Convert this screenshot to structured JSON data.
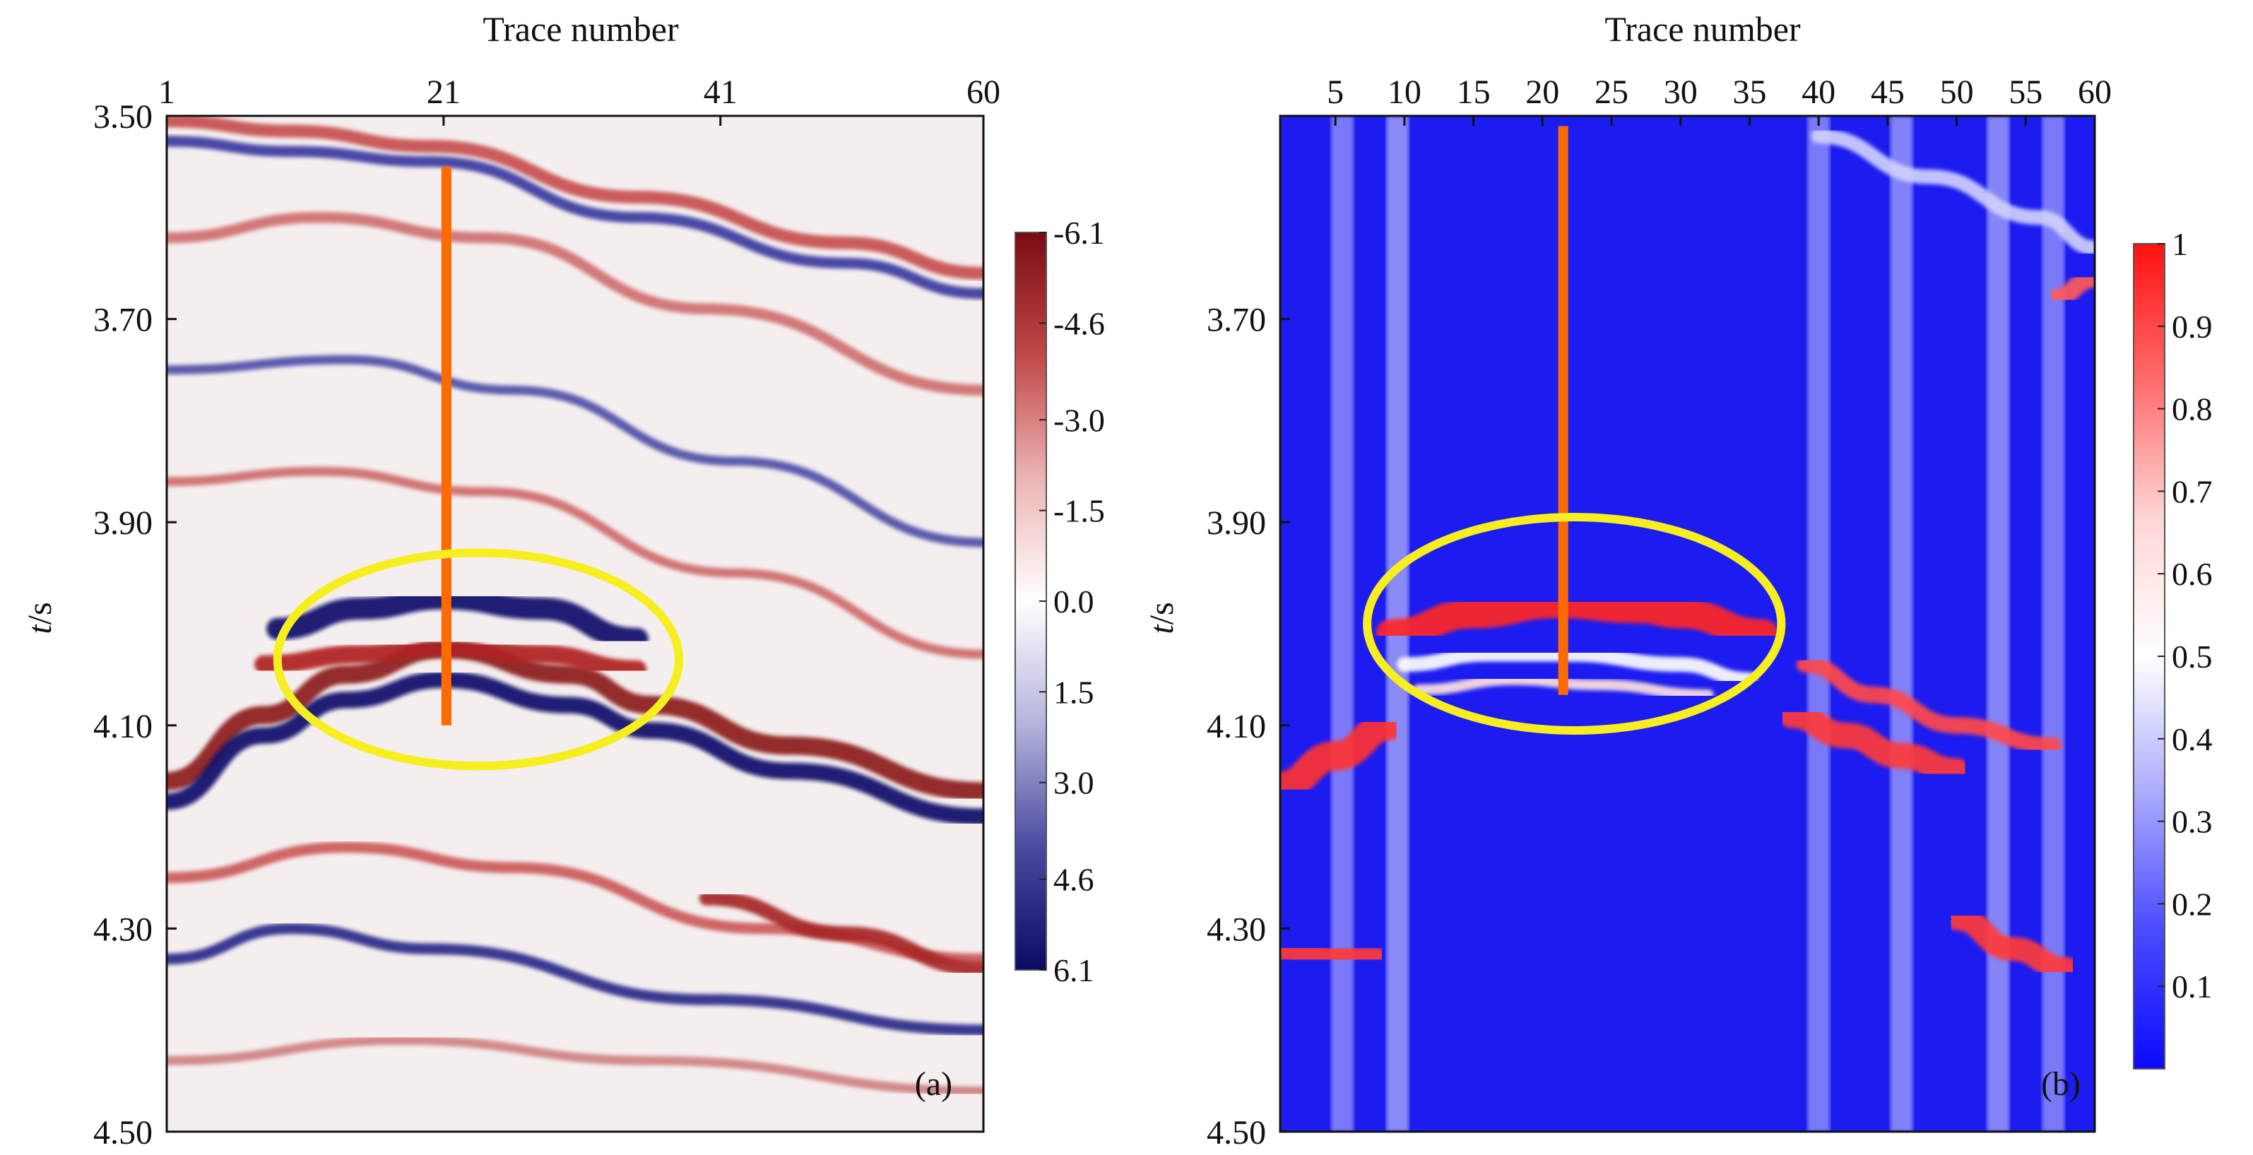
{
  "chart_data": [
    {
      "type": "heatmap",
      "panel_label": "(a)",
      "title": "",
      "xlabel": "Trace number",
      "ylabel_italic": "t",
      "ylabel_rest": "/s",
      "xlim": [
        1,
        60
      ],
      "ylim": [
        3.5,
        4.5
      ],
      "xticks": [
        1,
        21,
        41,
        60
      ],
      "xtick_labels": [
        "1",
        "21",
        "41",
        "60"
      ],
      "yticks": [
        3.5,
        3.7,
        3.9,
        4.1,
        4.3,
        4.5
      ],
      "ytick_labels": [
        "3.50",
        "3.70",
        "3.90",
        "4.10",
        "4.30",
        "4.50"
      ],
      "colorbar": {
        "range_top_to_bottom": [
          -6.1,
          6.1
        ],
        "tick_values": [
          -6.1,
          -4.6,
          -3.0,
          -1.5,
          0.0,
          1.5,
          3.0,
          4.6,
          6.1
        ],
        "tick_labels": [
          "-6.1",
          "-4.6",
          "-3.0",
          "-1.5",
          "0.0",
          "1.5",
          "3.0",
          "4.6",
          "6.1"
        ],
        "colors_top_to_bottom": [
          "#7a0b12",
          "#c04848",
          "#ecb4b4",
          "#ffffff",
          "#b4b4dc",
          "#4a4aa0",
          "#0a0a64"
        ]
      },
      "well_line": {
        "trace": 21.2,
        "t_start": 3.55,
        "t_end": 4.1,
        "color": "#ff6a00"
      },
      "highlight_ellipse": {
        "center_trace": 23.5,
        "center_t": 4.035,
        "half_width_traces": 14.5,
        "half_height_t": 0.105,
        "color": "#f7ee1f"
      },
      "reflectors": [
        {
          "points": [
            [
              1,
              4.155
            ],
            [
              8,
              4.09
            ],
            [
              14,
              4.05
            ],
            [
              21,
              4.025
            ],
            [
              30,
              4.05
            ],
            [
              36,
              4.08
            ],
            [
              46,
              4.12
            ],
            [
              60,
              4.165
            ]
          ],
          "color": "#8c1a1a",
          "width": 1.0
        },
        {
          "points": [
            [
              1,
              4.175
            ],
            [
              8,
              4.11
            ],
            [
              14,
              4.075
            ],
            [
              21,
              4.055
            ],
            [
              30,
              4.08
            ],
            [
              36,
              4.105
            ],
            [
              46,
              4.145
            ],
            [
              60,
              4.19
            ]
          ],
          "color": "#10106a",
          "width": 0.9
        },
        {
          "points": [
            [
              9,
              4.005
            ],
            [
              15,
              3.985
            ],
            [
              21,
              3.975
            ],
            [
              28,
              3.985
            ],
            [
              35,
              4.015
            ]
          ],
          "color": "#10106a",
          "width": 1.2
        },
        {
          "points": [
            [
              8,
              4.04
            ],
            [
              15,
              4.03
            ],
            [
              21,
              4.022
            ],
            [
              28,
              4.03
            ],
            [
              35,
              4.045
            ]
          ],
          "color": "#b02020",
          "width": 1.0
        },
        {
          "points": [
            [
              1,
              3.505
            ],
            [
              10,
              3.515
            ],
            [
              20,
              3.53
            ],
            [
              35,
              3.58
            ],
            [
              50,
              3.625
            ],
            [
              60,
              3.655
            ]
          ],
          "color": "#c85050",
          "width": 0.7
        },
        {
          "points": [
            [
              1,
              3.525
            ],
            [
              10,
              3.535
            ],
            [
              20,
              3.545
            ],
            [
              35,
              3.6
            ],
            [
              50,
              3.645
            ],
            [
              60,
              3.675
            ]
          ],
          "color": "#3a3aa0",
          "width": 0.6
        },
        {
          "points": [
            [
              1,
              3.62
            ],
            [
              12,
              3.6
            ],
            [
              24,
              3.62
            ],
            [
              40,
              3.69
            ],
            [
              60,
              3.77
            ]
          ],
          "color": "#d07070",
          "width": 0.6
        },
        {
          "points": [
            [
              1,
              3.75
            ],
            [
              14,
              3.74
            ],
            [
              26,
              3.77
            ],
            [
              42,
              3.84
            ],
            [
              60,
              3.92
            ]
          ],
          "color": "#5050a8",
          "width": 0.5
        },
        {
          "points": [
            [
              1,
              3.86
            ],
            [
              12,
              3.85
            ],
            [
              24,
              3.87
            ],
            [
              42,
              3.95
            ],
            [
              60,
              4.03
            ]
          ],
          "color": "#d06a6a",
          "width": 0.5
        },
        {
          "points": [
            [
              1,
              4.25
            ],
            [
              14,
              4.22
            ],
            [
              26,
              4.24
            ],
            [
              44,
              4.3
            ],
            [
              60,
              4.33
            ]
          ],
          "color": "#cc5a5a",
          "width": 0.6
        },
        {
          "points": [
            [
              1,
              4.33
            ],
            [
              10,
              4.3
            ],
            [
              20,
              4.32
            ],
            [
              40,
              4.37
            ],
            [
              60,
              4.4
            ]
          ],
          "color": "#2a2a8a",
          "width": 0.6
        },
        {
          "points": [
            [
              40,
              4.27
            ],
            [
              50,
              4.305
            ],
            [
              60,
              4.34
            ]
          ],
          "color": "#a82828",
          "width": 0.8
        },
        {
          "points": [
            [
              1,
              4.43
            ],
            [
              18,
              4.41
            ],
            [
              36,
              4.43
            ],
            [
              60,
              4.46
            ]
          ],
          "color": "#d08080",
          "width": 0.5
        }
      ]
    },
    {
      "type": "heatmap",
      "panel_label": "(b)",
      "title": "",
      "xlabel": "Trace number",
      "ylabel_italic": "t",
      "ylabel_rest": "/s",
      "xlim": [
        1,
        60
      ],
      "ylim": [
        3.5,
        4.5
      ],
      "xticks": [
        5,
        10,
        15,
        20,
        25,
        30,
        35,
        40,
        45,
        50,
        55,
        60
      ],
      "xtick_labels": [
        "5",
        "10",
        "15",
        "20",
        "25",
        "30",
        "35",
        "40",
        "45",
        "50",
        "55",
        "60"
      ],
      "yticks": [
        3.7,
        3.9,
        4.1,
        4.3,
        4.5
      ],
      "ytick_labels": [
        "3.70",
        "3.90",
        "4.10",
        "4.30",
        "4.50"
      ],
      "colorbar": {
        "range_top_to_bottom": [
          1,
          0
        ],
        "tick_values": [
          1,
          0.9,
          0.8,
          0.7,
          0.6,
          0.5,
          0.4,
          0.3,
          0.2,
          0.1
        ],
        "tick_labels": [
          "1",
          "0.9",
          "0.8",
          "0.7",
          "0.6",
          "0.5",
          "0.4",
          "0.3",
          "0.2",
          "0.1"
        ],
        "colors_top_to_bottom": [
          "#ff1010",
          "#ff6c6c",
          "#ffd6d6",
          "#ffffff",
          "#aaaaff",
          "#4a4aff",
          "#0a0aff"
        ]
      },
      "well_line": {
        "trace": 21.5,
        "t_start": 3.51,
        "t_end": 4.07,
        "color": "#ff6a00"
      },
      "highlight_ellipse": {
        "center_trace": 22.3,
        "center_t": 4.0,
        "half_width_traces": 15.0,
        "half_height_t": 0.105,
        "color": "#f7ee1f"
      },
      "reflectors": [
        {
          "points": [
            [
              9,
              4.01
            ],
            [
              15,
              3.99
            ],
            [
              21,
              3.98
            ],
            [
              27,
              3.985
            ],
            [
              30,
              3.99
            ],
            [
              36,
              4.01
            ]
          ],
          "color": "#ff2828",
          "width": 1.6
        },
        {
          "points": [
            [
              10,
              4.04
            ],
            [
              16,
              4.03
            ],
            [
              22,
              4.03
            ],
            [
              30,
              4.04
            ],
            [
              35,
              4.055
            ]
          ],
          "color": "#ffffff",
          "width": 0.8
        },
        {
          "points": [
            [
              11,
              4.065
            ],
            [
              18,
              4.055
            ],
            [
              24,
              4.06
            ],
            [
              32,
              4.07
            ]
          ],
          "color": "#ffe0e0",
          "width": 0.6
        },
        {
          "points": [
            [
              1,
              4.16
            ],
            [
              5,
              4.13
            ],
            [
              9,
              4.1
            ]
          ],
          "color": "#ff3030",
          "width": 1.6
        },
        {
          "points": [
            [
              39,
              4.04
            ],
            [
              44,
              4.07
            ],
            [
              50,
              4.1
            ],
            [
              57,
              4.12
            ]
          ],
          "color": "#ff4a4a",
          "width": 0.9
        },
        {
          "points": [
            [
              38,
              4.09
            ],
            [
              42,
              4.11
            ],
            [
              46,
              4.13
            ],
            [
              50,
              4.145
            ]
          ],
          "color": "#ff3a3a",
          "width": 1.4
        },
        {
          "points": [
            [
              1,
              4.32
            ],
            [
              5,
              4.33
            ],
            [
              8,
              4.33
            ]
          ],
          "color": "#ff3a3a",
          "width": 1.3
        },
        {
          "points": [
            [
              50,
              4.29
            ],
            [
              54,
              4.32
            ],
            [
              58,
              4.34
            ]
          ],
          "color": "#ff3a3a",
          "width": 1.3
        },
        {
          "points": [
            [
              57,
              3.68
            ],
            [
              60,
              3.66
            ]
          ],
          "color": "#ff5a5a",
          "width": 1.0
        },
        {
          "points": [
            [
              40,
              3.52
            ],
            [
              48,
              3.56
            ],
            [
              56,
              3.6
            ],
            [
              60,
              3.63
            ]
          ],
          "color": "#d0d0ff",
          "width": 0.8
        }
      ],
      "bright_columns": [
        {
          "trace": 5.5,
          "color": "#c8c8ff"
        },
        {
          "trace": 9.5,
          "color": "#e6e6ff"
        },
        {
          "trace": 40,
          "color": "#c8c8ff"
        },
        {
          "trace": 46,
          "color": "#d4d4ff"
        },
        {
          "trace": 53,
          "color": "#dcdcff"
        },
        {
          "trace": 57,
          "color": "#c8c8ff"
        }
      ]
    }
  ]
}
